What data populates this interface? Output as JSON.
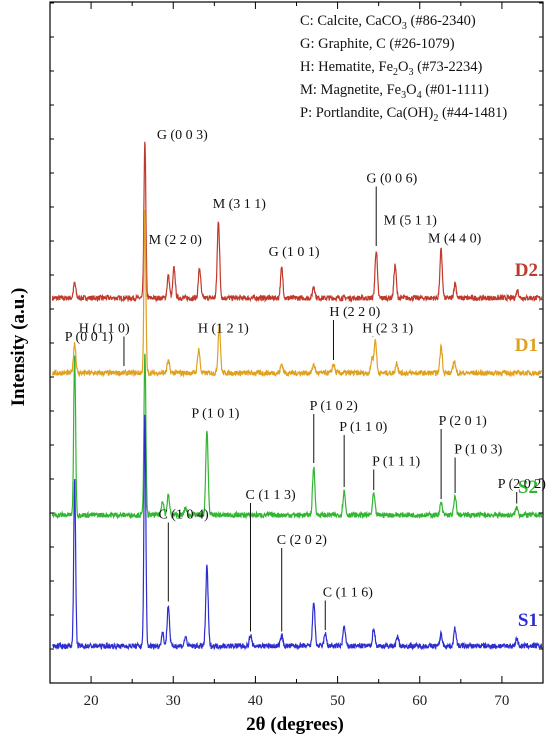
{
  "chart_data": {
    "type": "line",
    "xlabel": "2θ (degrees)",
    "ylabel": "Intensity (a.u.)",
    "xlim": [
      15,
      75
    ],
    "x_ticks": [
      20,
      30,
      40,
      50,
      60,
      70
    ],
    "grid": false,
    "y_tick_labels_shown": false,
    "legend_location": "top-right",
    "legend": [
      {
        "text": "C: Calcite, CaCO",
        "sub": "3",
        "rest": " (#86-2340)"
      },
      {
        "text": "G: Graphite, C (#26-1079)",
        "sub": "",
        "rest": ""
      },
      {
        "text": "H: Hematite, Fe",
        "sub": "2",
        "rest": "O",
        "sub2": "3",
        "rest2": " (#73-2234)"
      },
      {
        "text": "M: Magnetite, Fe",
        "sub": "3",
        "rest": "O",
        "sub2": "4",
        "rest2": " (#01-1111)"
      },
      {
        "text": "P: Portlandite, Ca(OH)",
        "sub": "2",
        "rest": " (#44-1481)"
      }
    ],
    "series": [
      {
        "name": "D2",
        "color": "#c0392b",
        "baseline": 300,
        "peaks": [
          {
            "x": 18.0,
            "h": 1.0
          },
          {
            "x": 26.55,
            "h": 10.6
          },
          {
            "x": 29.4,
            "h": 1.5
          },
          {
            "x": 30.1,
            "h": 2.0
          },
          {
            "x": 33.2,
            "h": 2.0
          },
          {
            "x": 35.5,
            "h": 5.2
          },
          {
            "x": 43.2,
            "h": 2.0
          },
          {
            "x": 47.1,
            "h": 0.8
          },
          {
            "x": 54.7,
            "h": 3.2
          },
          {
            "x": 57.0,
            "h": 2.2
          },
          {
            "x": 62.6,
            "h": 3.2
          },
          {
            "x": 64.3,
            "h": 1.0
          },
          {
            "x": 71.9,
            "h": 0.5
          }
        ]
      },
      {
        "name": "D1",
        "color": "#e0a020",
        "baseline": 220,
        "peaks": [
          {
            "x": 18.0,
            "h": 2.0
          },
          {
            "x": 26.55,
            "h": 10.8
          },
          {
            "x": 29.4,
            "h": 0.8
          },
          {
            "x": 33.1,
            "h": 1.6
          },
          {
            "x": 35.6,
            "h": 3.2
          },
          {
            "x": 43.2,
            "h": 0.6
          },
          {
            "x": 47.1,
            "h": 0.6
          },
          {
            "x": 49.5,
            "h": 0.6
          },
          {
            "x": 54.2,
            "h": 1.0
          },
          {
            "x": 54.6,
            "h": 2.2
          },
          {
            "x": 57.2,
            "h": 0.7
          },
          {
            "x": 62.6,
            "h": 1.8
          },
          {
            "x": 64.2,
            "h": 0.8
          }
        ]
      },
      {
        "name": "S2",
        "color": "#33b533",
        "baseline": 125,
        "peaks": [
          {
            "x": 18.0,
            "h": 10.8
          },
          {
            "x": 26.55,
            "h": 10.9
          },
          {
            "x": 28.7,
            "h": 1.0
          },
          {
            "x": 29.4,
            "h": 1.3
          },
          {
            "x": 31.5,
            "h": 0.5
          },
          {
            "x": 34.1,
            "h": 5.6
          },
          {
            "x": 47.1,
            "h": 3.2
          },
          {
            "x": 50.8,
            "h": 1.6
          },
          {
            "x": 54.4,
            "h": 1.4
          },
          {
            "x": 62.6,
            "h": 0.8
          },
          {
            "x": 64.3,
            "h": 1.2
          },
          {
            "x": 71.8,
            "h": 0.5
          }
        ]
      },
      {
        "name": "S1",
        "color": "#2d2dd0",
        "baseline": 0,
        "peaks": [
          {
            "x": 18.0,
            "h": 11.2
          },
          {
            "x": 26.55,
            "h": 15.4
          },
          {
            "x": 28.7,
            "h": 0.9
          },
          {
            "x": 29.4,
            "h": 2.7
          },
          {
            "x": 31.5,
            "h": 0.6
          },
          {
            "x": 34.1,
            "h": 5.3
          },
          {
            "x": 39.4,
            "h": 0.7
          },
          {
            "x": 43.2,
            "h": 0.7
          },
          {
            "x": 47.1,
            "h": 3.0
          },
          {
            "x": 48.5,
            "h": 0.8
          },
          {
            "x": 50.8,
            "h": 1.3
          },
          {
            "x": 54.4,
            "h": 1.2
          },
          {
            "x": 57.3,
            "h": 0.6
          },
          {
            "x": 62.6,
            "h": 0.8
          },
          {
            "x": 64.3,
            "h": 1.2
          },
          {
            "x": 71.8,
            "h": 0.5
          }
        ]
      }
    ],
    "annotations": [
      {
        "text": "G (0 0 3)",
        "x": 26.55,
        "label_x": 28.0,
        "series": "D2",
        "peak": 10.6,
        "label_y": 10.6
      },
      {
        "text": "M (2 2 0)",
        "x": 30.1,
        "label_x": 27.0,
        "series": "D2",
        "peak": 2.0,
        "label_y": 3.6
      },
      {
        "text": "M (3 1 1)",
        "x": 35.5,
        "label_x": 34.8,
        "series": "D2",
        "peak": 5.2,
        "label_y": 6.0
      },
      {
        "text": "G (1 0 1)",
        "x": 43.2,
        "label_x": 41.6,
        "series": "D2",
        "peak": 2.0,
        "label_y": 2.8
      },
      {
        "text": "G (0 0 6)",
        "x": 54.7,
        "label_x": 53.5,
        "series": "D2",
        "peak": 3.2,
        "label_y": 7.7,
        "leader": true
      },
      {
        "text": "M (5 1 1)",
        "x": 57.0,
        "label_x": 55.6,
        "series": "D2",
        "peak": 2.2,
        "label_y": 4.9
      },
      {
        "text": "M (4 4 0)",
        "x": 62.6,
        "label_x": 61.0,
        "series": "D2",
        "peak": 3.2,
        "label_y": 3.7
      },
      {
        "text": "H (1 1 0)",
        "x": 24.0,
        "label_x": 18.5,
        "series": "D1",
        "peak": 0.2,
        "label_y": 2.7,
        "leader": true
      },
      {
        "text": "H (1 2 1)",
        "x": 33.1,
        "label_x": 33.0,
        "series": "D1",
        "peak": 1.6,
        "label_y": 2.7
      },
      {
        "text": "H (2 2 0)",
        "x": 49.5,
        "label_x": 49.0,
        "series": "D1",
        "peak": 0.6,
        "label_y": 3.8,
        "leader": true
      },
      {
        "text": "H (2 3 1)",
        "x": 54.3,
        "label_x": 53.0,
        "series": "D1",
        "peak": 2.2,
        "label_y": 2.7,
        "leader": true
      },
      {
        "text": "P (0 0 1)",
        "x": 18.0,
        "label_x": 16.8,
        "series": "S2",
        "peak": 10.8,
        "label_y": 11.6
      },
      {
        "text": "P (1 0 1)",
        "x": 34.1,
        "label_x": 32.2,
        "series": "S2",
        "peak": 5.6,
        "label_y": 6.5
      },
      {
        "text": "P (1 0 2)",
        "x": 47.1,
        "label_x": 46.6,
        "series": "S2",
        "peak": 3.2,
        "label_y": 7.0,
        "leader": true
      },
      {
        "text": "P (1 1 0)",
        "x": 50.8,
        "label_x": 50.2,
        "series": "S2",
        "peak": 1.6,
        "label_y": 5.6,
        "leader": true
      },
      {
        "text": "P (1 1 1)",
        "x": 54.4,
        "label_x": 54.2,
        "series": "S2",
        "peak": 1.4,
        "label_y": 3.3,
        "leader": true
      },
      {
        "text": "P (2 0 1)",
        "x": 62.6,
        "label_x": 62.3,
        "series": "S2",
        "peak": 0.8,
        "label_y": 6.0,
        "leader": true
      },
      {
        "text": "P (1 0 3)",
        "x": 64.3,
        "label_x": 64.2,
        "series": "S2",
        "peak": 1.2,
        "label_y": 4.1,
        "leader": true
      },
      {
        "text": "P (2 0 2)",
        "x": 71.8,
        "label_x": 69.5,
        "series": "S2",
        "peak": 0.5,
        "label_y": 1.8,
        "leader": true
      },
      {
        "text": "C (1 0 4)",
        "x": 29.4,
        "label_x": 28.2,
        "series": "S1",
        "peak": 2.7,
        "label_y": 8.5,
        "leader": true
      },
      {
        "text": "C (1 1 3)",
        "x": 39.4,
        "label_x": 38.8,
        "series": "S1",
        "peak": 0.7,
        "label_y": 9.8,
        "leader": true
      },
      {
        "text": "C (2 0 2)",
        "x": 43.2,
        "label_x": 42.6,
        "series": "S1",
        "peak": 0.7,
        "label_y": 6.8,
        "leader": true
      },
      {
        "text": "C (1 1 6)",
        "x": 48.5,
        "label_x": 48.2,
        "series": "S1",
        "peak": 0.8,
        "label_y": 3.3,
        "leader": true
      }
    ]
  }
}
